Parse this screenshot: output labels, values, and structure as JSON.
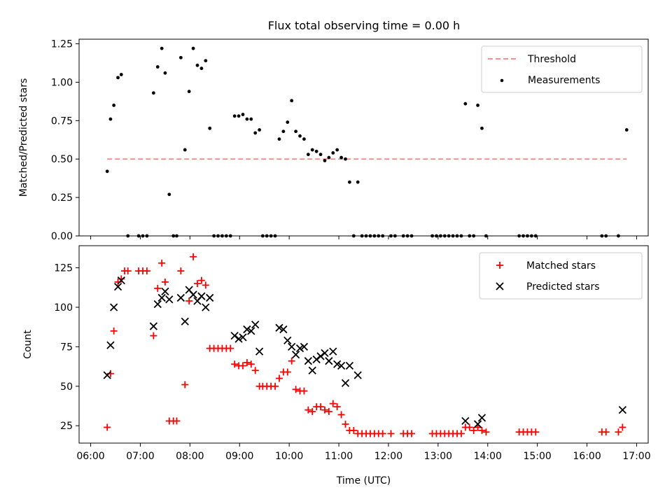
{
  "figure": {
    "title": "Flux total observing time = 0.00 h"
  },
  "chart_data": [
    {
      "type": "scatter",
      "ylabel": "Matched/Predicted stars",
      "xlabel": "",
      "xlim": [
        "06:00",
        "17:00"
      ],
      "ylim": [
        0,
        1.28
      ],
      "y_ticks": [
        "0.00",
        "0.25",
        "0.50",
        "0.75",
        "1.00",
        "1.25"
      ],
      "threshold": {
        "name": "Threshold",
        "value": 0.5,
        "x_start": "06:20",
        "x_end": "16:48",
        "color": "#ff7f7f"
      },
      "legend": {
        "placement": "top-right",
        "entries": [
          "Threshold",
          "Measurements"
        ]
      },
      "series": [
        {
          "name": "Measurements",
          "color": "#000000",
          "points": [
            [
              "06:20",
              0.42
            ],
            [
              "06:24",
              0.76
            ],
            [
              "06:28",
              0.85
            ],
            [
              "06:33",
              1.03
            ],
            [
              "06:37",
              1.05
            ],
            [
              "06:45",
              0.0
            ],
            [
              "06:58",
              0.0
            ],
            [
              "07:03",
              0.0
            ],
            [
              "07:08",
              0.0
            ],
            [
              "07:16",
              0.93
            ],
            [
              "07:21",
              1.1
            ],
            [
              "07:26",
              1.22
            ],
            [
              "07:30",
              1.06
            ],
            [
              "07:35",
              0.27
            ],
            [
              "07:40",
              0.0
            ],
            [
              "07:44",
              0.0
            ],
            [
              "07:49",
              1.16
            ],
            [
              "07:54",
              0.56
            ],
            [
              "07:59",
              0.94
            ],
            [
              "08:04",
              1.22
            ],
            [
              "08:09",
              1.11
            ],
            [
              "08:14",
              1.09
            ],
            [
              "08:19",
              1.14
            ],
            [
              "08:24",
              0.7
            ],
            [
              "08:29",
              0.0
            ],
            [
              "08:34",
              0.0
            ],
            [
              "08:39",
              0.0
            ],
            [
              "08:44",
              0.0
            ],
            [
              "08:49",
              0.0
            ],
            [
              "08:54",
              0.78
            ],
            [
              "08:59",
              0.78
            ],
            [
              "09:04",
              0.79
            ],
            [
              "09:09",
              0.76
            ],
            [
              "09:14",
              0.76
            ],
            [
              "09:19",
              0.67
            ],
            [
              "09:24",
              0.69
            ],
            [
              "09:28",
              0.0
            ],
            [
              "09:33",
              0.0
            ],
            [
              "09:38",
              0.0
            ],
            [
              "09:43",
              0.0
            ],
            [
              "09:48",
              0.63
            ],
            [
              "09:53",
              0.68
            ],
            [
              "09:58",
              0.74
            ],
            [
              "10:03",
              0.88
            ],
            [
              "10:08",
              0.68
            ],
            [
              "10:13",
              0.65
            ],
            [
              "10:18",
              0.63
            ],
            [
              "10:23",
              0.53
            ],
            [
              "10:28",
              0.56
            ],
            [
              "10:33",
              0.55
            ],
            [
              "10:38",
              0.53
            ],
            [
              "10:43",
              0.49
            ],
            [
              "10:48",
              0.51
            ],
            [
              "10:53",
              0.54
            ],
            [
              "10:58",
              0.56
            ],
            [
              "11:03",
              0.51
            ],
            [
              "11:08",
              0.5
            ],
            [
              "11:13",
              0.35
            ],
            [
              "11:18",
              0.0
            ],
            [
              "11:23",
              0.35
            ],
            [
              "11:28",
              0.0
            ],
            [
              "11:33",
              0.0
            ],
            [
              "11:38",
              0.0
            ],
            [
              "11:43",
              0.0
            ],
            [
              "11:48",
              0.0
            ],
            [
              "11:53",
              0.0
            ],
            [
              "12:03",
              0.0
            ],
            [
              "12:08",
              0.0
            ],
            [
              "12:18",
              0.0
            ],
            [
              "12:23",
              0.0
            ],
            [
              "12:28",
              0.0
            ],
            [
              "12:53",
              0.0
            ],
            [
              "12:58",
              0.0
            ],
            [
              "13:03",
              0.0
            ],
            [
              "13:08",
              0.0
            ],
            [
              "13:13",
              0.0
            ],
            [
              "13:18",
              0.0
            ],
            [
              "13:23",
              0.0
            ],
            [
              "13:28",
              0.0
            ],
            [
              "13:33",
              0.86
            ],
            [
              "13:38",
              0.0
            ],
            [
              "13:43",
              0.0
            ],
            [
              "13:48",
              0.85
            ],
            [
              "13:53",
              0.7
            ],
            [
              "13:58",
              0.0
            ],
            [
              "14:38",
              0.0
            ],
            [
              "14:43",
              0.0
            ],
            [
              "14:48",
              0.0
            ],
            [
              "14:53",
              0.0
            ],
            [
              "14:58",
              0.0
            ],
            [
              "16:18",
              0.0
            ],
            [
              "16:23",
              0.0
            ],
            [
              "16:38",
              0.0
            ],
            [
              "16:48",
              0.69
            ]
          ]
        }
      ]
    },
    {
      "type": "scatter",
      "ylabel": "Count",
      "xlabel": "Time (UTC)",
      "xlim": [
        "06:00",
        "17:00"
      ],
      "ylim": [
        14,
        139
      ],
      "y_ticks": [
        "25",
        "50",
        "75",
        "100",
        "125"
      ],
      "x_ticks": [
        "06:00",
        "07:00",
        "08:00",
        "09:00",
        "10:00",
        "11:00",
        "12:00",
        "13:00",
        "14:00",
        "15:00",
        "16:00",
        "17:00"
      ],
      "legend": {
        "placement": "top-right",
        "entries": [
          "Matched stars",
          "Predicted stars"
        ]
      },
      "series": [
        {
          "name": "Matched stars",
          "marker": "plus",
          "color": "#ff0000",
          "points": [
            [
              "06:20",
              24
            ],
            [
              "06:24",
              58
            ],
            [
              "06:28",
              85
            ],
            [
              "06:33",
              116
            ],
            [
              "06:37",
              118
            ],
            [
              "06:41",
              123
            ],
            [
              "06:45",
              123
            ],
            [
              "06:58",
              123
            ],
            [
              "07:03",
              123
            ],
            [
              "07:08",
              123
            ],
            [
              "07:16",
              82
            ],
            [
              "07:21",
              112
            ],
            [
              "07:26",
              128
            ],
            [
              "07:30",
              116
            ],
            [
              "07:35",
              28
            ],
            [
              "07:40",
              28
            ],
            [
              "07:44",
              28
            ],
            [
              "07:49",
              123
            ],
            [
              "07:54",
              51
            ],
            [
              "07:59",
              104
            ],
            [
              "08:04",
              132
            ],
            [
              "08:09",
              115
            ],
            [
              "08:14",
              117
            ],
            [
              "08:19",
              114
            ],
            [
              "08:24",
              74
            ],
            [
              "08:29",
              74
            ],
            [
              "08:34",
              74
            ],
            [
              "08:39",
              74
            ],
            [
              "08:44",
              74
            ],
            [
              "08:49",
              74
            ],
            [
              "08:54",
              64
            ],
            [
              "08:59",
              63
            ],
            [
              "09:04",
              63
            ],
            [
              "09:09",
              65
            ],
            [
              "09:14",
              64
            ],
            [
              "09:19",
              60
            ],
            [
              "09:24",
              50
            ],
            [
              "09:28",
              50
            ],
            [
              "09:33",
              50
            ],
            [
              "09:38",
              50
            ],
            [
              "09:43",
              50
            ],
            [
              "09:48",
              55
            ],
            [
              "09:53",
              59
            ],
            [
              "09:58",
              59
            ],
            [
              "10:03",
              66
            ],
            [
              "10:08",
              48
            ],
            [
              "10:13",
              47
            ],
            [
              "10:18",
              47
            ],
            [
              "10:23",
              35
            ],
            [
              "10:28",
              34
            ],
            [
              "10:33",
              37
            ],
            [
              "10:38",
              37
            ],
            [
              "10:43",
              35
            ],
            [
              "10:48",
              34
            ],
            [
              "10:53",
              39
            ],
            [
              "10:58",
              37
            ],
            [
              "11:03",
              32
            ],
            [
              "11:08",
              26
            ],
            [
              "11:13",
              22
            ],
            [
              "11:18",
              22
            ],
            [
              "11:23",
              20
            ],
            [
              "11:28",
              20
            ],
            [
              "11:33",
              20
            ],
            [
              "11:38",
              20
            ],
            [
              "11:43",
              20
            ],
            [
              "11:48",
              20
            ],
            [
              "11:53",
              20
            ],
            [
              "12:03",
              20
            ],
            [
              "12:18",
              20
            ],
            [
              "12:23",
              20
            ],
            [
              "12:28",
              20
            ],
            [
              "12:53",
              20
            ],
            [
              "12:58",
              20
            ],
            [
              "13:03",
              20
            ],
            [
              "13:08",
              20
            ],
            [
              "13:13",
              20
            ],
            [
              "13:18",
              20
            ],
            [
              "13:23",
              20
            ],
            [
              "13:28",
              20
            ],
            [
              "13:33",
              24
            ],
            [
              "13:38",
              24
            ],
            [
              "13:43",
              22
            ],
            [
              "13:48",
              24
            ],
            [
              "13:53",
              22
            ],
            [
              "13:58",
              21
            ],
            [
              "14:38",
              21
            ],
            [
              "14:43",
              21
            ],
            [
              "14:48",
              21
            ],
            [
              "14:53",
              21
            ],
            [
              "14:58",
              21
            ],
            [
              "16:18",
              21
            ],
            [
              "16:23",
              21
            ],
            [
              "16:38",
              21
            ],
            [
              "16:43",
              24
            ]
          ]
        },
        {
          "name": "Predicted stars",
          "marker": "x",
          "color": "#000000",
          "points": [
            [
              "06:20",
              57
            ],
            [
              "06:24",
              76
            ],
            [
              "06:28",
              100
            ],
            [
              "06:33",
              113
            ],
            [
              "06:37",
              117
            ],
            [
              "07:16",
              88
            ],
            [
              "07:21",
              102
            ],
            [
              "07:26",
              106
            ],
            [
              "07:30",
              110
            ],
            [
              "07:35",
              105
            ],
            [
              "07:49",
              106
            ],
            [
              "07:54",
              91
            ],
            [
              "07:59",
              111
            ],
            [
              "08:04",
              108
            ],
            [
              "08:09",
              104
            ],
            [
              "08:14",
              107
            ],
            [
              "08:19",
              100
            ],
            [
              "08:24",
              106
            ],
            [
              "08:54",
              82
            ],
            [
              "08:59",
              80
            ],
            [
              "09:04",
              81
            ],
            [
              "09:09",
              86
            ],
            [
              "09:14",
              85
            ],
            [
              "09:19",
              89
            ],
            [
              "09:24",
              72
            ],
            [
              "09:48",
              87
            ],
            [
              "09:53",
              86
            ],
            [
              "09:58",
              79
            ],
            [
              "10:03",
              75
            ],
            [
              "10:08",
              70
            ],
            [
              "10:13",
              74
            ],
            [
              "10:18",
              75
            ],
            [
              "10:23",
              66
            ],
            [
              "10:28",
              60
            ],
            [
              "10:33",
              67
            ],
            [
              "10:38",
              69
            ],
            [
              "10:43",
              71
            ],
            [
              "10:48",
              66
            ],
            [
              "10:53",
              72
            ],
            [
              "10:58",
              64
            ],
            [
              "11:03",
              63
            ],
            [
              "11:08",
              52
            ],
            [
              "11:13",
              63
            ],
            [
              "11:23",
              57
            ],
            [
              "13:33",
              28
            ],
            [
              "13:48",
              26
            ],
            [
              "13:53",
              30
            ],
            [
              "16:43",
              35
            ]
          ]
        }
      ]
    }
  ]
}
